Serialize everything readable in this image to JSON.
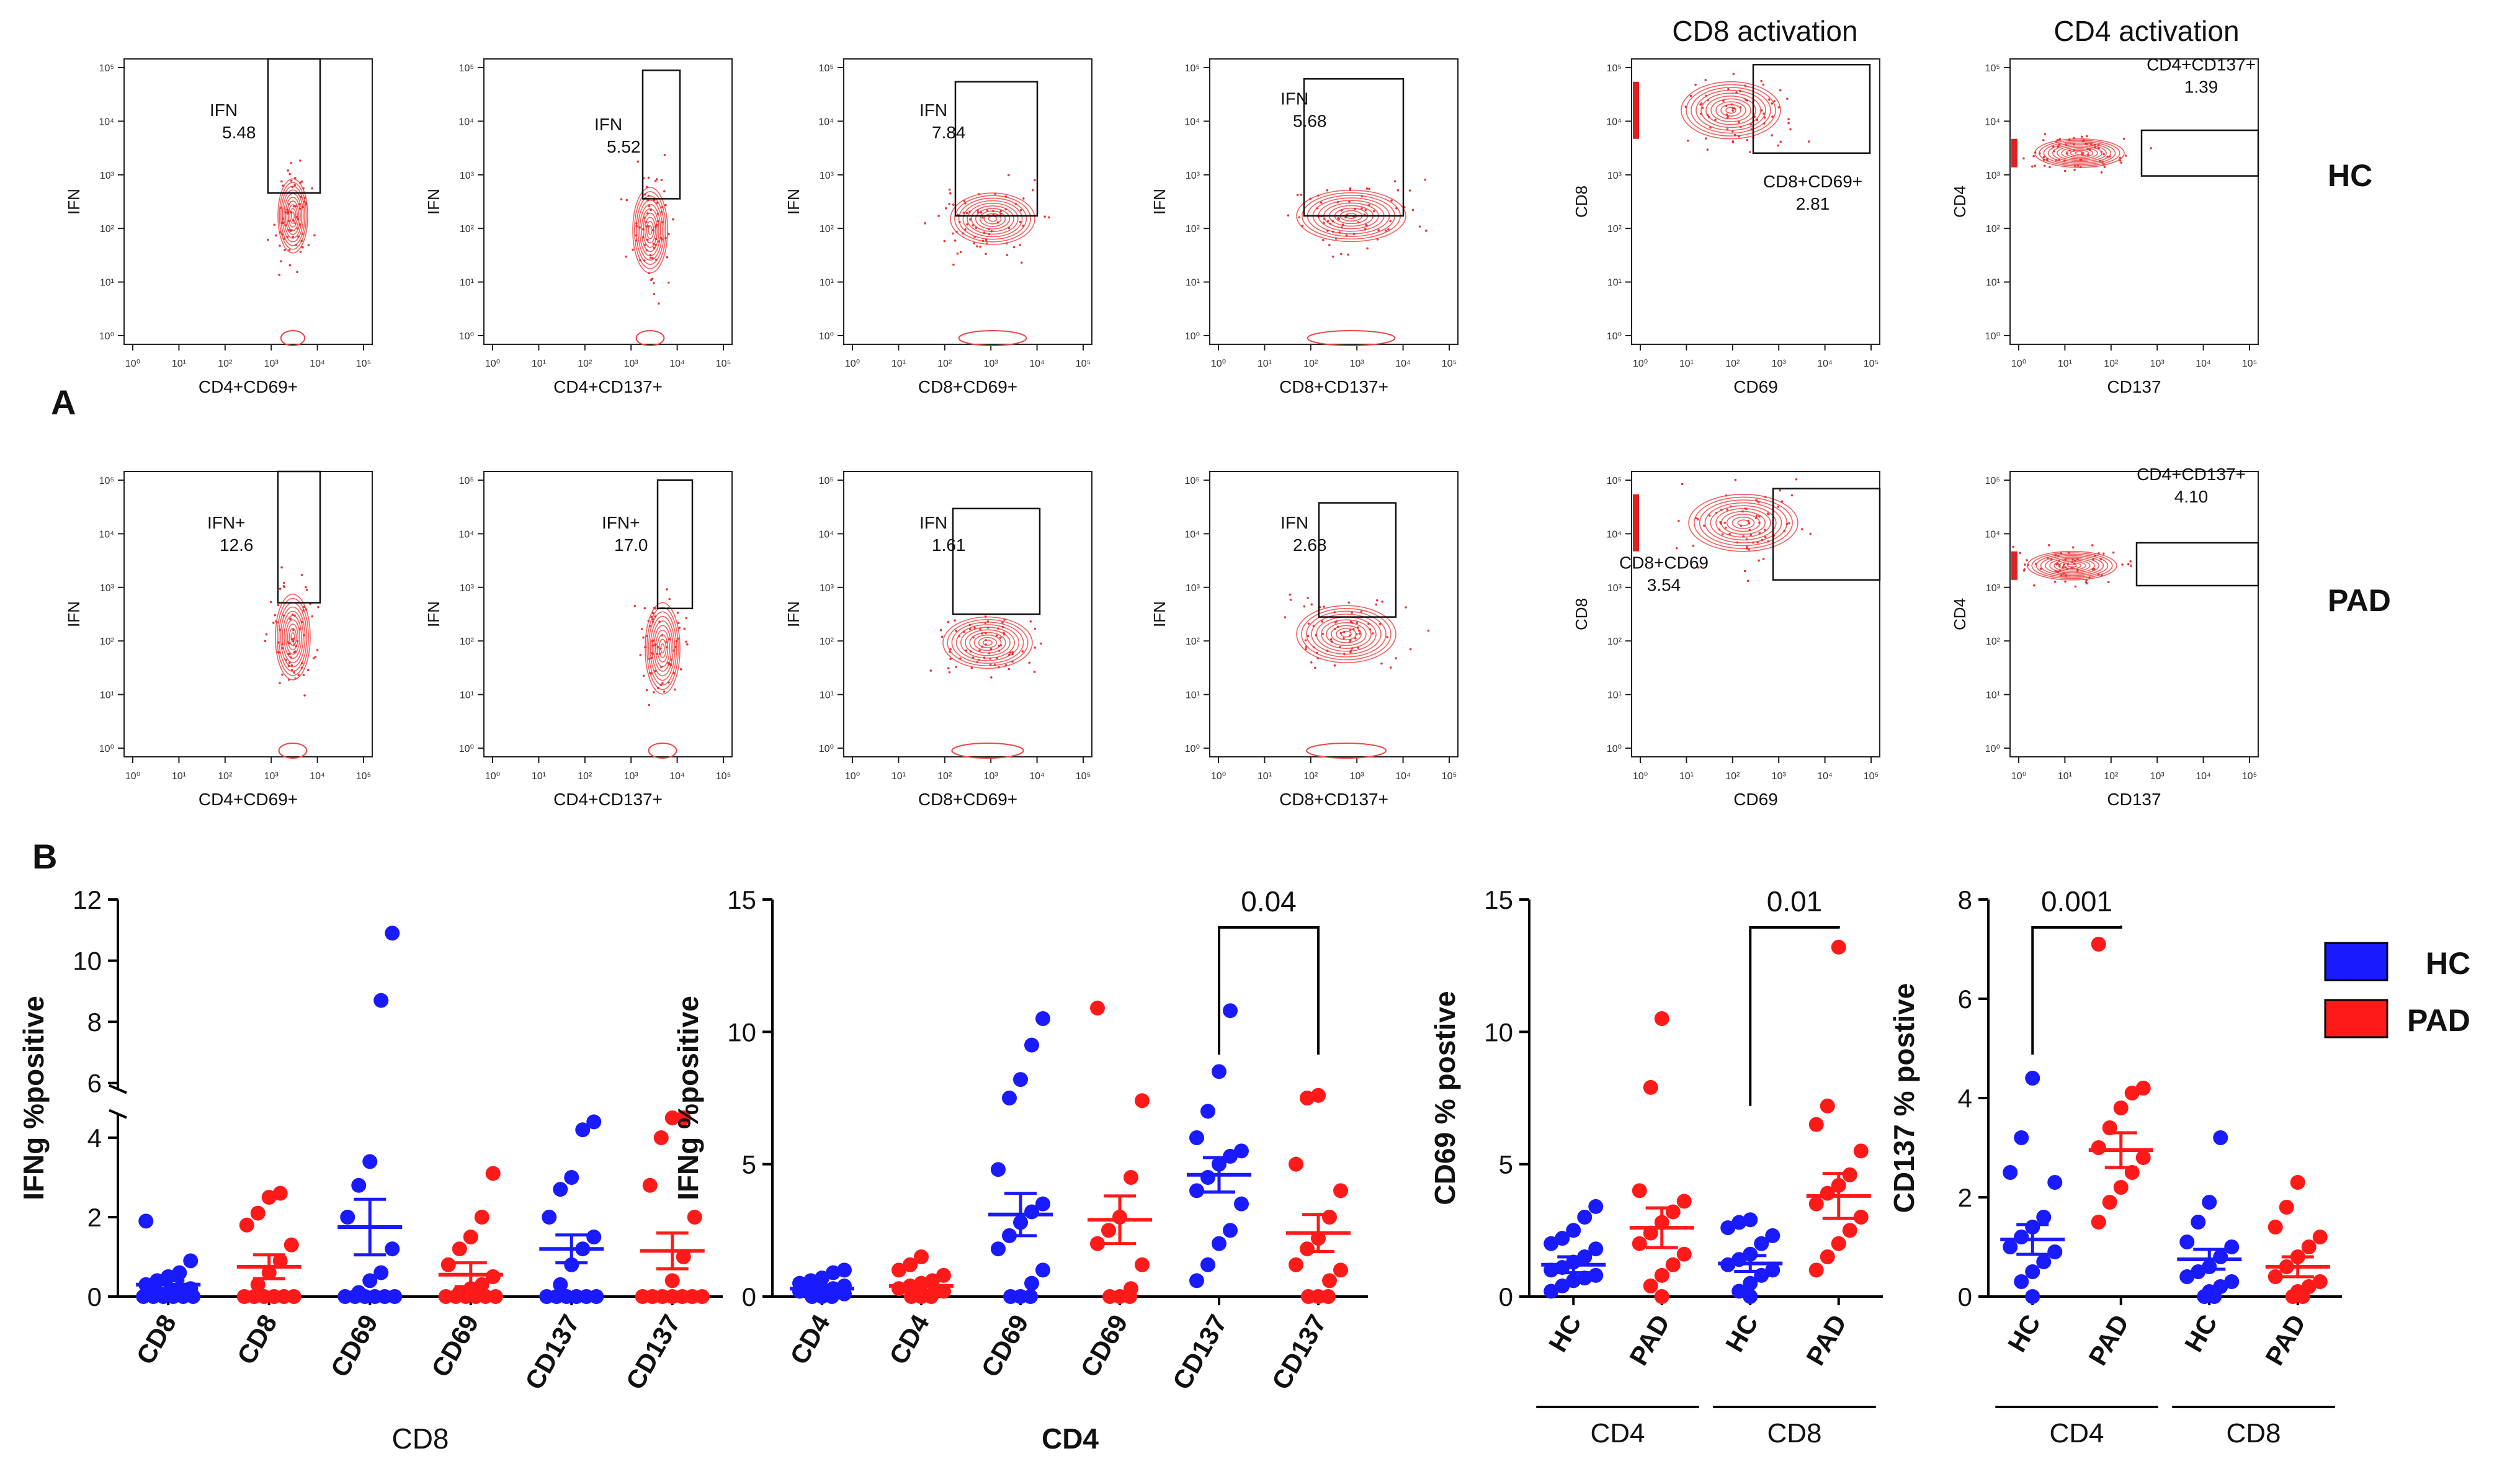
{
  "panel_a": {
    "label": "A",
    "column_headers": [
      "CD8 activation",
      "CD4 activation"
    ],
    "row_labels": [
      "HC",
      "PAD"
    ],
    "tick_labels": [
      "10⁰",
      "10¹",
      "10²",
      "10³",
      "10⁴",
      "10⁵"
    ],
    "plots": [
      {
        "row": "HC",
        "xlabel": "CD4+CD69+",
        "ylabel": "IFN",
        "gate_name": "IFN",
        "gate_value": "5.48"
      },
      {
        "row": "HC",
        "xlabel": "CD4+CD137+",
        "ylabel": "IFN",
        "gate_name": "IFN",
        "gate_value": "5.52"
      },
      {
        "row": "HC",
        "xlabel": "CD8+CD69+",
        "ylabel": "IFN",
        "gate_name": "IFN",
        "gate_value": "7.84"
      },
      {
        "row": "HC",
        "xlabel": "CD8+CD137+",
        "ylabel": "IFN",
        "gate_name": "IFN",
        "gate_value": "5.68"
      },
      {
        "row": "HC",
        "xlabel": "CD69",
        "ylabel": "CD8",
        "gate_name": "CD8+CD69+",
        "gate_value": "2.81"
      },
      {
        "row": "HC",
        "xlabel": "CD137",
        "ylabel": "CD4",
        "gate_name": "CD4+CD137+",
        "gate_value": "1.39"
      },
      {
        "row": "PAD",
        "xlabel": "CD4+CD69+",
        "ylabel": "IFN",
        "gate_name": "IFN+",
        "gate_value": "12.6"
      },
      {
        "row": "PAD",
        "xlabel": "CD4+CD137+",
        "ylabel": "IFN",
        "gate_name": "IFN+",
        "gate_value": "17.0"
      },
      {
        "row": "PAD",
        "xlabel": "CD8+CD69+",
        "ylabel": "IFN",
        "gate_name": "IFN",
        "gate_value": "1.61"
      },
      {
        "row": "PAD",
        "xlabel": "CD8+CD137+",
        "ylabel": "IFN",
        "gate_name": "IFN",
        "gate_value": "2.68"
      },
      {
        "row": "PAD",
        "xlabel": "CD69",
        "ylabel": "CD8",
        "gate_name": "CD8+CD69",
        "gate_value": "3.54"
      },
      {
        "row": "PAD",
        "xlabel": "CD137",
        "ylabel": "CD4",
        "gate_name": "CD4+CD137+",
        "gate_value": "4.10"
      }
    ]
  },
  "panel_b": {
    "label": "B"
  },
  "legend": {
    "items": [
      {
        "label": "HC",
        "color": "#1a1aff"
      },
      {
        "label": "PAD",
        "color": "#ff1a1a"
      }
    ]
  },
  "chart_data": [
    {
      "type": "scatter",
      "title": "",
      "ylabel": "IFNg %positive",
      "xlabel": "CD8",
      "categories": [
        "CD8",
        "CD8",
        "CD69",
        "CD69",
        "CD137",
        "CD137"
      ],
      "category_groups": [
        "HC",
        "PAD",
        "HC",
        "PAD",
        "HC",
        "PAD"
      ],
      "axis_break": {
        "between": [
          4.6,
          5.5
        ]
      },
      "ylim": [
        0,
        12
      ],
      "yticks": [
        0,
        2,
        4,
        6,
        8,
        10,
        12
      ],
      "means": [
        0.3,
        0.75,
        1.75,
        0.55,
        1.2,
        1.15
      ],
      "sems": [
        0.1,
        0.3,
        0.7,
        0.3,
        0.35,
        0.45
      ],
      "points": [
        [
          0,
          0,
          0,
          0,
          0,
          0,
          0.1,
          0.1,
          0.2,
          0.2,
          0.3,
          0.4,
          0.5,
          0.6,
          0.9,
          1.9
        ],
        [
          0,
          0,
          0,
          0,
          0,
          0,
          0.3,
          0.6,
          0.9,
          1.3,
          1.8,
          2.1,
          2.5,
          2.6
        ],
        [
          0,
          0,
          0,
          0,
          0,
          0,
          0.1,
          0.4,
          0.6,
          1.2,
          2.0,
          2.8,
          3.4,
          8.7,
          10.9
        ],
        [
          0,
          0,
          0,
          0,
          0,
          0,
          0.1,
          0.2,
          0.3,
          0.5,
          0.8,
          1.2,
          1.5,
          2.0,
          3.1
        ],
        [
          0,
          0,
          0,
          0,
          0,
          0,
          0.3,
          0.8,
          1.2,
          1.5,
          2.0,
          2.7,
          3.0,
          4.2,
          4.4
        ],
        [
          0,
          0,
          0,
          0,
          0,
          0,
          0,
          0.4,
          1.0,
          2.0,
          2.8,
          4.0,
          4.5,
          4.5
        ]
      ]
    },
    {
      "type": "scatter",
      "title": "",
      "ylabel": "IFNg %positive",
      "xlabel": "CD4",
      "categories": [
        "CD4",
        "CD4",
        "CD69",
        "CD69",
        "CD137",
        "CD137"
      ],
      "category_groups": [
        "HC",
        "PAD",
        "HC",
        "PAD",
        "HC",
        "PAD"
      ],
      "ylim": [
        0,
        15
      ],
      "yticks": [
        0,
        5,
        10,
        15
      ],
      "means": [
        0.3,
        0.4,
        3.1,
        2.9,
        4.6,
        2.4
      ],
      "sems": [
        0.1,
        0.15,
        0.8,
        0.9,
        0.65,
        0.7
      ],
      "points": [
        [
          0,
          0,
          0,
          0.1,
          0.1,
          0.2,
          0.2,
          0.3,
          0.3,
          0.4,
          0.5,
          0.6,
          0.7,
          0.9,
          1.0
        ],
        [
          0,
          0,
          0,
          0.1,
          0.2,
          0.3,
          0.4,
          0.5,
          0.6,
          0.8,
          1.0,
          1.2,
          1.5
        ],
        [
          0,
          0,
          0,
          0.5,
          1.0,
          1.8,
          2.3,
          2.8,
          3.2,
          3.5,
          4.8,
          7.5,
          8.2,
          9.5,
          10.5
        ],
        [
          0,
          0,
          0,
          0.3,
          1.2,
          2.0,
          2.5,
          3.0,
          4.5,
          7.4,
          10.9
        ],
        [
          0.6,
          1.2,
          2.0,
          2.5,
          3.5,
          4.0,
          4.5,
          5.0,
          5.3,
          5.5,
          6.0,
          7.0,
          8.5,
          10.8
        ],
        [
          0,
          0,
          0,
          0.6,
          1.0,
          1.2,
          1.8,
          2.2,
          3.0,
          4.0,
          5.0,
          7.5,
          7.6
        ]
      ],
      "annotations": [
        {
          "from": 4,
          "to": 5,
          "text": "0.04"
        }
      ]
    },
    {
      "type": "scatter",
      "title": "",
      "ylabel": "CD69 % postive",
      "categories": [
        "HC",
        "PAD",
        "HC",
        "PAD"
      ],
      "category_groups": [
        "HC",
        "PAD",
        "HC",
        "PAD"
      ],
      "group_labels": [
        {
          "label": "CD4",
          "from": 0,
          "to": 1
        },
        {
          "label": "CD8",
          "from": 2,
          "to": 3
        }
      ],
      "ylim": [
        0,
        15
      ],
      "yticks": [
        0,
        5,
        10,
        15
      ],
      "means": [
        1.2,
        2.6,
        1.25,
        3.8
      ],
      "sems": [
        0.3,
        0.75,
        0.3,
        0.85
      ],
      "points": [
        [
          0.2,
          0.4,
          0.6,
          0.7,
          0.8,
          1.0,
          1.1,
          1.3,
          1.5,
          1.8,
          2.0,
          2.2,
          2.5,
          3.0,
          3.4
        ],
        [
          0,
          0.4,
          0.8,
          1.2,
          1.6,
          2.0,
          2.4,
          2.8,
          3.2,
          3.6,
          4.0,
          7.9,
          10.5
        ],
        [
          0,
          0.2,
          0.5,
          0.8,
          1.0,
          1.2,
          1.4,
          1.6,
          2.0,
          2.3,
          2.6,
          2.8,
          2.9
        ],
        [
          1.0,
          1.5,
          2.0,
          2.5,
          3.0,
          3.5,
          3.9,
          4.2,
          4.6,
          5.5,
          6.5,
          7.2,
          13.2
        ]
      ],
      "annotations": [
        {
          "from": 2,
          "to": 3,
          "text": "0.01"
        }
      ]
    },
    {
      "type": "scatter",
      "title": "",
      "ylabel": "CD137 % postive",
      "categories": [
        "HC",
        "PAD",
        "HC",
        "PAD"
      ],
      "category_groups": [
        "HC",
        "PAD",
        "HC",
        "PAD"
      ],
      "group_labels": [
        {
          "label": "CD4",
          "from": 0,
          "to": 1
        },
        {
          "label": "CD8",
          "from": 2,
          "to": 3
        }
      ],
      "ylim": [
        0,
        8
      ],
      "yticks": [
        0,
        2,
        4,
        6,
        8
      ],
      "means": [
        1.15,
        2.95,
        0.75,
        0.6
      ],
      "sems": [
        0.3,
        0.35,
        0.2,
        0.2
      ],
      "points": [
        [
          0,
          0.3,
          0.5,
          0.7,
          0.9,
          1.0,
          1.2,
          1.4,
          1.6,
          2.3,
          2.5,
          3.2,
          4.4
        ],
        [
          1.5,
          1.9,
          2.2,
          2.5,
          2.8,
          3.0,
          3.4,
          3.8,
          4.1,
          4.2,
          7.1
        ],
        [
          0,
          0,
          0.1,
          0.2,
          0.3,
          0.4,
          0.5,
          0.6,
          0.8,
          1.0,
          1.1,
          1.5,
          1.9,
          3.2
        ],
        [
          0,
          0,
          0.1,
          0.2,
          0.3,
          0.4,
          0.6,
          0.8,
          1.0,
          1.2,
          1.4,
          1.8,
          2.3
        ]
      ],
      "annotations": [
        {
          "from": 0,
          "to": 1,
          "text": "0.001"
        }
      ]
    }
  ]
}
